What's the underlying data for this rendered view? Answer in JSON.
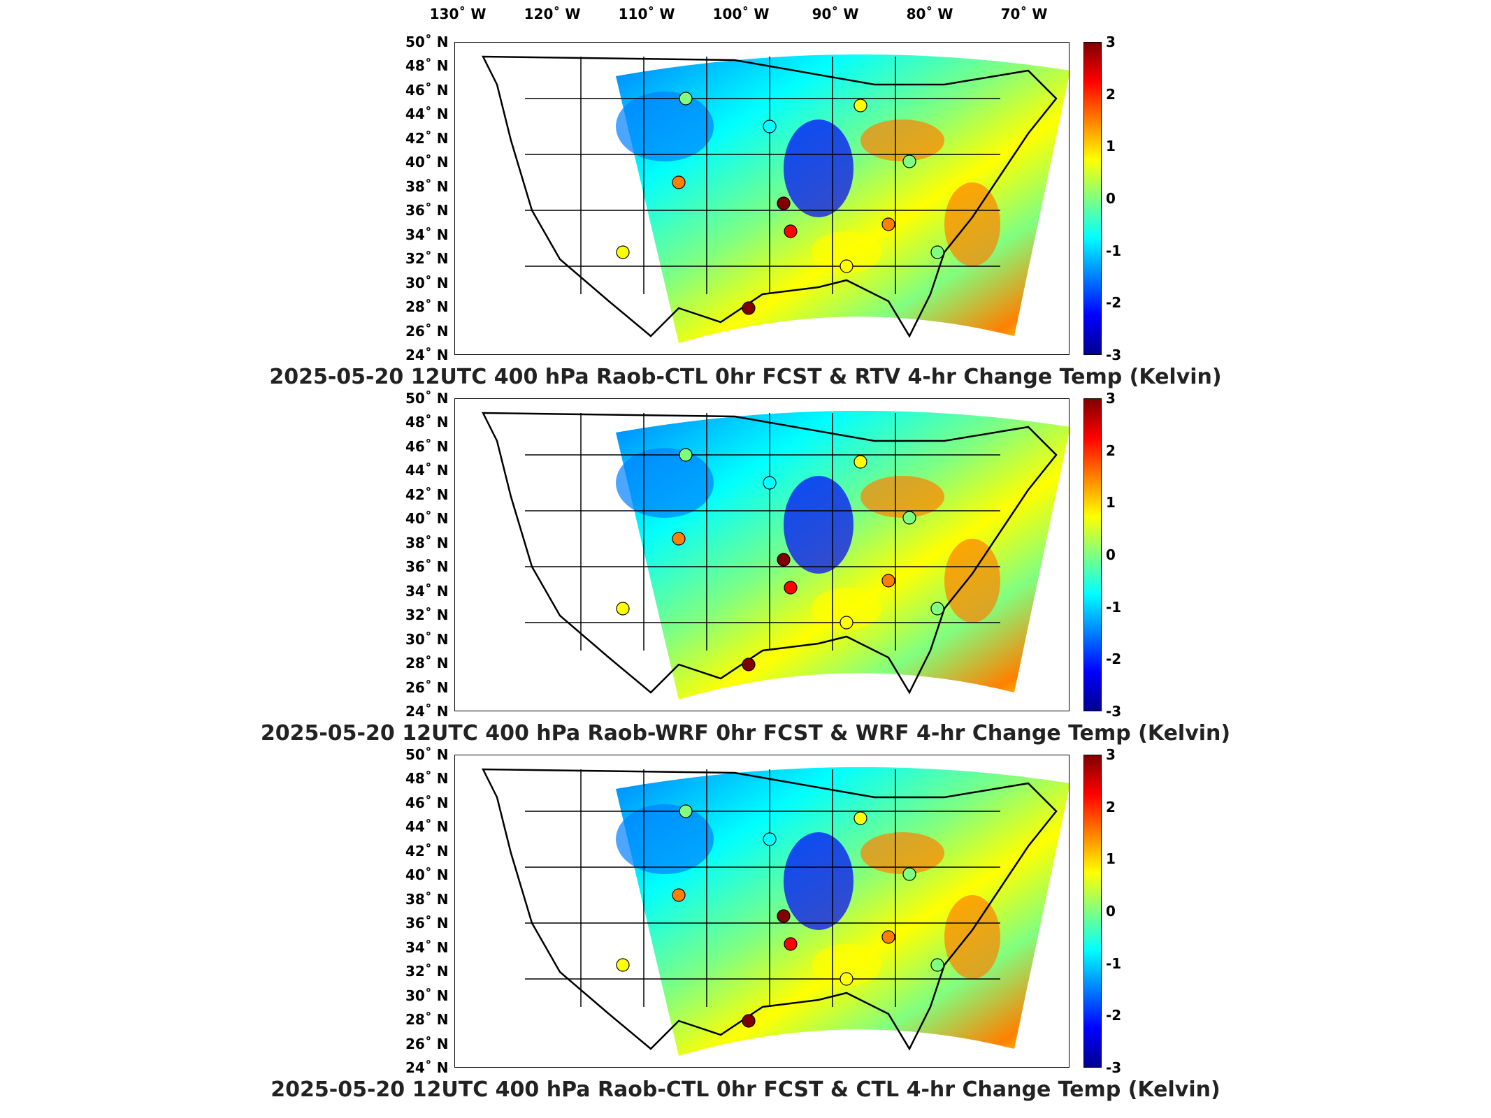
{
  "longitude_labels": [
    "130˚ W",
    "120˚ W",
    "110˚ W",
    "100˚ W",
    "90˚ W",
    "80˚ W",
    "70˚ W"
  ],
  "latitude_labels": [
    "50˚ N",
    "48˚ N",
    "46˚ N",
    "44˚ N",
    "42˚ N",
    "40˚ N",
    "38˚ N",
    "36˚ N",
    "34˚ N",
    "32˚ N",
    "30˚ N",
    "28˚ N",
    "26˚ N",
    "24˚ N"
  ],
  "colorbar_ticks": [
    "3",
    "2",
    "1",
    "0",
    "-1",
    "-2",
    "-3"
  ],
  "colorbar_range": [
    -3,
    3
  ],
  "colormap_colors": [
    "#00008f",
    "#0000ff",
    "#0080ff",
    "#00ffff",
    "#80ff80",
    "#ffff00",
    "#ff8000",
    "#ff0000",
    "#800000"
  ],
  "panels": [
    {
      "caption": "2025-05-20 12UTC 400 hPa Raob-CTL 0hr FCST & RTV 4-hr Change Temp (Kelvin)"
    },
    {
      "caption": "2025-05-20 12UTC 400 hPa Raob-WRF 0hr FCST & WRF 4-hr Change Temp (Kelvin)"
    },
    {
      "caption": "2025-05-20 12UTC 400 hPa Raob-CTL 0hr FCST & CTL 4-hr Change Temp (Kelvin)"
    }
  ]
}
